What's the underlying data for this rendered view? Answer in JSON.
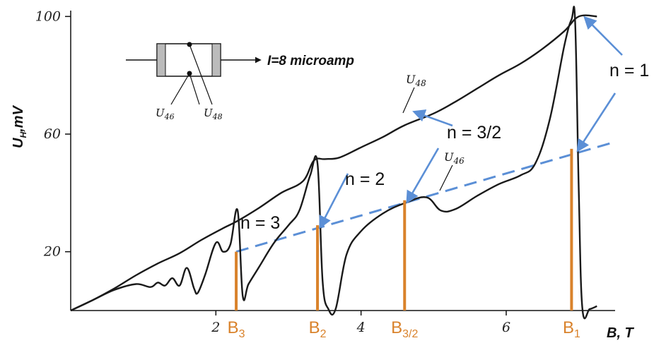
{
  "chart_data": {
    "type": "line",
    "xlabel": "B, T",
    "ylabel": "U",
    "ylabel_sub": "H",
    "ylabel_unit": ",mV",
    "xlim": [
      0,
      7.5
    ],
    "ylim": [
      0,
      102
    ],
    "x_ticks": [
      {
        "value": 2,
        "label": "2"
      },
      {
        "value": 4,
        "label": "4"
      },
      {
        "value": 6,
        "label": "6"
      }
    ],
    "y_ticks": [
      {
        "value": 20,
        "label": "20"
      },
      {
        "value": 60,
        "label": "60"
      },
      {
        "value": 100,
        "label": "100"
      }
    ],
    "series": [
      {
        "name": "U48",
        "label_main": "U",
        "label_sub": "48",
        "color": "#1a1a1a",
        "x": [
          0,
          0.3,
          0.6,
          0.9,
          1.2,
          1.5,
          1.8,
          2.1,
          2.3,
          2.6,
          2.9,
          3.2,
          3.35,
          3.5,
          3.7,
          4.0,
          4.3,
          4.6,
          5.0,
          5.3,
          5.6,
          5.9,
          6.2,
          6.5,
          6.8,
          7.0,
          7.25
        ],
        "y": [
          0,
          3.5,
          7.5,
          12,
          16,
          19.5,
          24,
          28,
          30.5,
          35,
          40,
          44,
          51,
          51.5,
          52,
          55.5,
          59,
          63,
          67,
          71,
          75.5,
          80,
          84,
          89,
          95,
          100,
          100
        ]
      },
      {
        "name": "U46",
        "label_main": "U",
        "label_sub": "46",
        "color": "#1a1a1a",
        "x": [
          0,
          0.3,
          0.6,
          0.9,
          1.1,
          1.2,
          1.3,
          1.4,
          1.5,
          1.6,
          1.7,
          1.75,
          1.85,
          2.0,
          2.1,
          2.2,
          2.3,
          2.37,
          2.45,
          2.6,
          2.8,
          3.0,
          3.15,
          3.3,
          3.4,
          3.47,
          3.55,
          3.65,
          3.8,
          4.0,
          4.3,
          4.6,
          4.9,
          5.1,
          5.3,
          5.6,
          5.9,
          6.2,
          6.4,
          6.6,
          6.8,
          6.9,
          6.95,
          7.0,
          7.05,
          7.15,
          7.25
        ],
        "y": [
          0,
          3.5,
          7,
          9,
          8,
          9.5,
          8.5,
          11,
          8.5,
          14.5,
          7.5,
          6,
          12,
          23,
          20,
          22.5,
          34,
          5,
          9,
          15,
          23,
          29,
          34,
          46,
          50,
          10,
          0.5,
          0.5,
          19,
          27,
          33,
          36.5,
          38.5,
          34,
          34.5,
          39,
          43,
          46,
          50,
          65,
          90,
          99,
          98,
          40,
          0.5,
          0.5,
          1.5
        ]
      }
    ],
    "baseline": {
      "x": [
        2.28,
        7.45
      ],
      "y": [
        20,
        57
      ],
      "style": "dashed",
      "color": "#5b8fd6"
    },
    "field_markers": [
      {
        "main": "B",
        "sub": "3",
        "x": 2.28,
        "y": 20
      },
      {
        "main": "B",
        "sub": "2",
        "x": 3.4,
        "y": 29
      },
      {
        "main": "B",
        "sub": "3/2",
        "x": 4.6,
        "y": 37.5
      },
      {
        "main": "B",
        "sub": "1",
        "x": 6.9,
        "y": 55
      }
    ],
    "annotations": [
      {
        "text": "n = 1",
        "target_x": 6.95,
        "target_y": 55,
        "target2_x": 7.05,
        "target2_y": 100
      },
      {
        "text": "n = 3/2",
        "target_x": 4.6,
        "target_y": 37.5,
        "target2_x": 4.7,
        "target2_y": 68
      },
      {
        "text": "n = 2",
        "target_x": 3.4,
        "target_y": 29
      },
      {
        "text": "n = 3"
      }
    ],
    "marker_color": "#d9822b",
    "arrow_color": "#5b8fd6"
  },
  "inset": {
    "current": "I=8 microamp",
    "lead1_main": "U",
    "lead1_sub": "46",
    "lead2_main": "U",
    "lead2_sub": "48"
  }
}
